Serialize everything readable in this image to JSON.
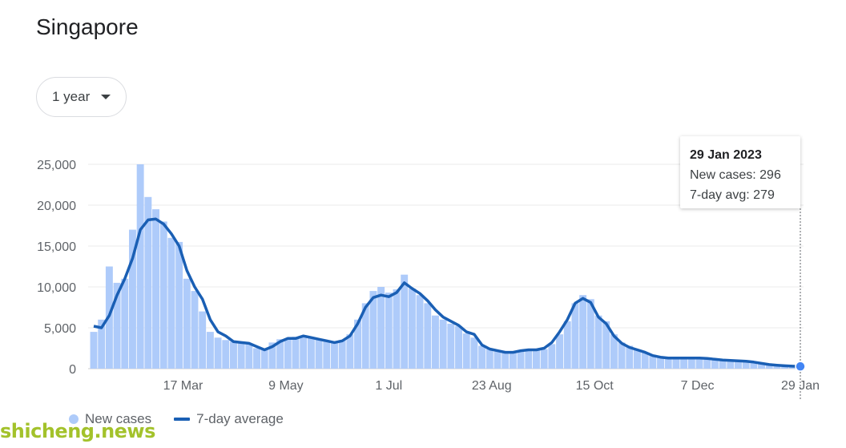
{
  "header": {
    "title": "Singapore"
  },
  "range_selector": {
    "label": "1 year"
  },
  "tooltip": {
    "date": "29 Jan 2023",
    "new_cases": "New cases: 296",
    "avg": "7-day avg: 279"
  },
  "legend": {
    "bars": "New cases",
    "line": "7-day average"
  },
  "watermark": "shicheng.news",
  "colors": {
    "bars": "#aecbfa",
    "line": "#1a5fb4",
    "grid": "#ebebeb",
    "axis": "#cccccc"
  },
  "chart_data": {
    "type": "bar",
    "ylim": [
      0,
      28000
    ],
    "yticks": [
      0,
      5000,
      10000,
      15000,
      20000,
      25000
    ],
    "ytick_labels": [
      "0",
      "5,000",
      "10,000",
      "15,000",
      "20,000",
      "25,000"
    ],
    "xrange": [
      "2022-01-30",
      "2023-01-29"
    ],
    "xticks": [
      {
        "date": "2022-03-17",
        "label": "17 Mar"
      },
      {
        "date": "2022-05-09",
        "label": "9 May"
      },
      {
        "date": "2022-07-01",
        "label": "1 Jul"
      },
      {
        "date": "2022-08-23",
        "label": "23 Aug"
      },
      {
        "date": "2022-10-15",
        "label": "15 Oct"
      },
      {
        "date": "2022-12-07",
        "label": "7 Dec"
      },
      {
        "date": "2023-01-29",
        "label": "29 Jan"
      }
    ],
    "series": [
      {
        "name": "New cases",
        "kind": "bar",
        "points": [
          [
            "2022-01-30",
            4500
          ],
          [
            "2022-02-03",
            6000
          ],
          [
            "2022-02-07",
            12500
          ],
          [
            "2022-02-11",
            10500
          ],
          [
            "2022-02-15",
            11000
          ],
          [
            "2022-02-19",
            17000
          ],
          [
            "2022-02-23",
            25000
          ],
          [
            "2022-02-27",
            21000
          ],
          [
            "2022-03-03",
            19500
          ],
          [
            "2022-03-07",
            18000
          ],
          [
            "2022-03-11",
            16000
          ],
          [
            "2022-03-15",
            15500
          ],
          [
            "2022-03-19",
            11000
          ],
          [
            "2022-03-23",
            9500
          ],
          [
            "2022-03-27",
            7000
          ],
          [
            "2022-03-31",
            4500
          ],
          [
            "2022-04-04",
            3800
          ],
          [
            "2022-04-08",
            3500
          ],
          [
            "2022-04-12",
            3300
          ],
          [
            "2022-04-16",
            3200
          ],
          [
            "2022-04-20",
            3000
          ],
          [
            "2022-04-24",
            2500
          ],
          [
            "2022-04-28",
            2400
          ],
          [
            "2022-05-02",
            3200
          ],
          [
            "2022-05-06",
            3600
          ],
          [
            "2022-05-10",
            3700
          ],
          [
            "2022-05-14",
            3900
          ],
          [
            "2022-05-18",
            3900
          ],
          [
            "2022-05-22",
            3800
          ],
          [
            "2022-05-26",
            3600
          ],
          [
            "2022-05-30",
            3400
          ],
          [
            "2022-06-03",
            3300
          ],
          [
            "2022-06-07",
            3500
          ],
          [
            "2022-06-11",
            4200
          ],
          [
            "2022-06-15",
            6000
          ],
          [
            "2022-06-19",
            8000
          ],
          [
            "2022-06-23",
            9500
          ],
          [
            "2022-06-27",
            10000
          ],
          [
            "2022-07-01",
            9300
          ],
          [
            "2022-07-05",
            9700
          ],
          [
            "2022-07-09",
            11500
          ],
          [
            "2022-07-13",
            9800
          ],
          [
            "2022-07-17",
            9000
          ],
          [
            "2022-07-21",
            8000
          ],
          [
            "2022-07-25",
            6500
          ],
          [
            "2022-07-29",
            6000
          ],
          [
            "2022-08-02",
            5500
          ],
          [
            "2022-08-06",
            5200
          ],
          [
            "2022-08-10",
            4300
          ],
          [
            "2022-08-14",
            3800
          ],
          [
            "2022-08-18",
            2800
          ],
          [
            "2022-08-22",
            2400
          ],
          [
            "2022-08-26",
            2100
          ],
          [
            "2022-08-30",
            2000
          ],
          [
            "2022-09-03",
            2000
          ],
          [
            "2022-09-07",
            2200
          ],
          [
            "2022-09-11",
            2300
          ],
          [
            "2022-09-15",
            2300
          ],
          [
            "2022-09-19",
            2400
          ],
          [
            "2022-09-23",
            3000
          ],
          [
            "2022-09-27",
            4200
          ],
          [
            "2022-10-01",
            5800
          ],
          [
            "2022-10-05",
            8000
          ],
          [
            "2022-10-09",
            9000
          ],
          [
            "2022-10-13",
            8500
          ],
          [
            "2022-10-17",
            6500
          ],
          [
            "2022-10-21",
            5800
          ],
          [
            "2022-10-25",
            4200
          ],
          [
            "2022-10-29",
            3200
          ],
          [
            "2022-11-02",
            2800
          ],
          [
            "2022-11-06",
            2300
          ],
          [
            "2022-11-10",
            2000
          ],
          [
            "2022-11-14",
            1700
          ],
          [
            "2022-11-18",
            1500
          ],
          [
            "2022-11-22",
            1400
          ],
          [
            "2022-11-26",
            1300
          ],
          [
            "2022-11-30",
            1300
          ],
          [
            "2022-12-04",
            1300
          ],
          [
            "2022-12-08",
            1300
          ],
          [
            "2022-12-12",
            1200
          ],
          [
            "2022-12-16",
            1200
          ],
          [
            "2022-12-20",
            1100
          ],
          [
            "2022-12-24",
            1000
          ],
          [
            "2022-12-28",
            950
          ],
          [
            "2023-01-01",
            900
          ],
          [
            "2023-01-05",
            800
          ],
          [
            "2023-01-09",
            700
          ],
          [
            "2023-01-13",
            500
          ],
          [
            "2023-01-17",
            450
          ],
          [
            "2023-01-21",
            350
          ],
          [
            "2023-01-25",
            300
          ],
          [
            "2023-01-29",
            296
          ]
        ]
      },
      {
        "name": "7-day average",
        "kind": "line",
        "points": [
          [
            "2022-01-30",
            5200
          ],
          [
            "2022-02-03",
            5000
          ],
          [
            "2022-02-07",
            6500
          ],
          [
            "2022-02-11",
            9000
          ],
          [
            "2022-02-15",
            11000
          ],
          [
            "2022-02-19",
            13500
          ],
          [
            "2022-02-23",
            17000
          ],
          [
            "2022-02-27",
            18200
          ],
          [
            "2022-03-03",
            18300
          ],
          [
            "2022-03-07",
            17700
          ],
          [
            "2022-03-11",
            16500
          ],
          [
            "2022-03-15",
            15000
          ],
          [
            "2022-03-19",
            12000
          ],
          [
            "2022-03-23",
            10000
          ],
          [
            "2022-03-27",
            8500
          ],
          [
            "2022-03-31",
            6000
          ],
          [
            "2022-04-04",
            4500
          ],
          [
            "2022-04-08",
            4000
          ],
          [
            "2022-04-12",
            3300
          ],
          [
            "2022-04-16",
            3200
          ],
          [
            "2022-04-20",
            3100
          ],
          [
            "2022-04-24",
            2700
          ],
          [
            "2022-04-28",
            2300
          ],
          [
            "2022-05-02",
            2700
          ],
          [
            "2022-05-06",
            3300
          ],
          [
            "2022-05-10",
            3700
          ],
          [
            "2022-05-14",
            3700
          ],
          [
            "2022-05-18",
            4000
          ],
          [
            "2022-05-22",
            3800
          ],
          [
            "2022-05-26",
            3600
          ],
          [
            "2022-05-30",
            3400
          ],
          [
            "2022-06-03",
            3200
          ],
          [
            "2022-06-07",
            3400
          ],
          [
            "2022-06-11",
            4000
          ],
          [
            "2022-06-15",
            5500
          ],
          [
            "2022-06-19",
            7500
          ],
          [
            "2022-06-23",
            8700
          ],
          [
            "2022-06-27",
            9000
          ],
          [
            "2022-07-01",
            8800
          ],
          [
            "2022-07-05",
            9300
          ],
          [
            "2022-07-09",
            10500
          ],
          [
            "2022-07-13",
            9800
          ],
          [
            "2022-07-17",
            9200
          ],
          [
            "2022-07-21",
            8300
          ],
          [
            "2022-07-25",
            7200
          ],
          [
            "2022-07-29",
            6300
          ],
          [
            "2022-08-02",
            5800
          ],
          [
            "2022-08-06",
            5300
          ],
          [
            "2022-08-10",
            4500
          ],
          [
            "2022-08-14",
            4200
          ],
          [
            "2022-08-18",
            2900
          ],
          [
            "2022-08-22",
            2400
          ],
          [
            "2022-08-26",
            2200
          ],
          [
            "2022-08-30",
            2000
          ],
          [
            "2022-09-03",
            2000
          ],
          [
            "2022-09-07",
            2200
          ],
          [
            "2022-09-11",
            2300
          ],
          [
            "2022-09-15",
            2300
          ],
          [
            "2022-09-19",
            2500
          ],
          [
            "2022-09-23",
            3200
          ],
          [
            "2022-09-27",
            4500
          ],
          [
            "2022-10-01",
            6000
          ],
          [
            "2022-10-05",
            8000
          ],
          [
            "2022-10-09",
            8600
          ],
          [
            "2022-10-13",
            8100
          ],
          [
            "2022-10-17",
            6300
          ],
          [
            "2022-10-21",
            5500
          ],
          [
            "2022-10-25",
            4000
          ],
          [
            "2022-10-29",
            3100
          ],
          [
            "2022-11-02",
            2600
          ],
          [
            "2022-11-06",
            2300
          ],
          [
            "2022-11-10",
            2000
          ],
          [
            "2022-11-14",
            1600
          ],
          [
            "2022-11-18",
            1400
          ],
          [
            "2022-11-22",
            1300
          ],
          [
            "2022-11-26",
            1300
          ],
          [
            "2022-11-30",
            1300
          ],
          [
            "2022-12-04",
            1300
          ],
          [
            "2022-12-08",
            1300
          ],
          [
            "2022-12-12",
            1250
          ],
          [
            "2022-12-16",
            1150
          ],
          [
            "2022-12-20",
            1050
          ],
          [
            "2022-12-24",
            1000
          ],
          [
            "2022-12-28",
            950
          ],
          [
            "2023-01-01",
            900
          ],
          [
            "2023-01-05",
            800
          ],
          [
            "2023-01-09",
            650
          ],
          [
            "2023-01-13",
            500
          ],
          [
            "2023-01-17",
            420
          ],
          [
            "2023-01-21",
            350
          ],
          [
            "2023-01-25",
            300
          ],
          [
            "2023-01-29",
            279
          ]
        ]
      }
    ]
  }
}
